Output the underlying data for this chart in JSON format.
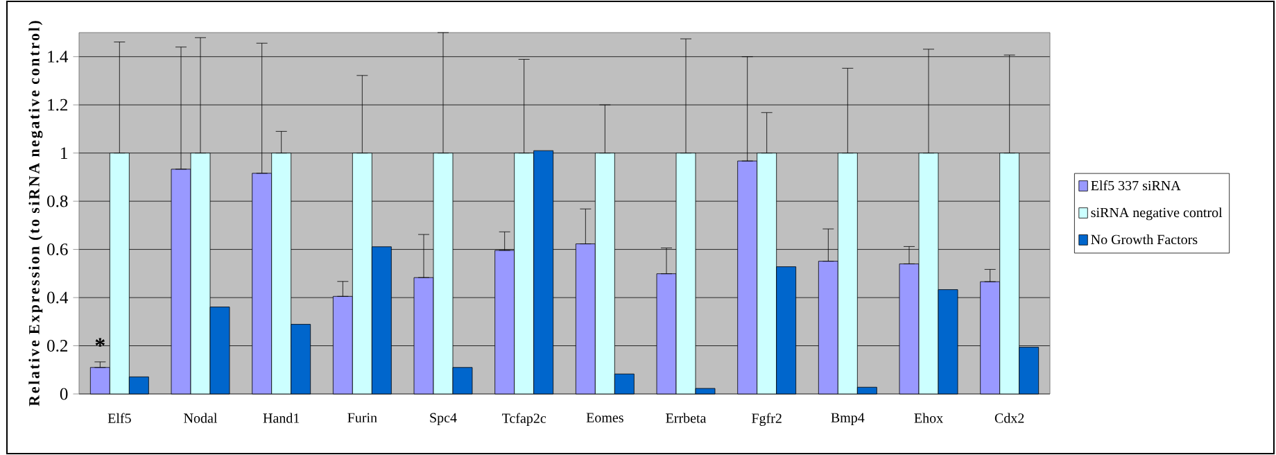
{
  "chart_data": {
    "type": "bar",
    "ylabel": "Relative Expression (to siRNA negative control)",
    "categories": [
      "Elf5",
      "Nodal",
      "Hand1",
      "Furin",
      "Spc4",
      "Tcfap2c",
      "Eomes",
      "Errbeta",
      "Fgfr2",
      "Bmp4",
      "Ehox",
      "Cdx2"
    ],
    "series": [
      {
        "name": "Elf5 337 siRNA",
        "color": "#9999ff",
        "values": [
          0.11,
          0.933,
          0.916,
          0.405,
          0.483,
          0.596,
          0.623,
          0.499,
          0.967,
          0.551,
          0.54,
          0.466
        ],
        "errors": [
          [
            0.11,
            0.133
          ],
          [
            0.933,
            1.44
          ],
          [
            0.916,
            1.456
          ],
          [
            0.405,
            0.467
          ],
          [
            0.483,
            0.662
          ],
          [
            0.596,
            0.673
          ],
          [
            0.623,
            0.768
          ],
          [
            0.499,
            0.606
          ],
          [
            0.967,
            1.4
          ],
          [
            0.551,
            0.685
          ],
          [
            0.54,
            0.612
          ],
          [
            0.466,
            0.517
          ]
        ]
      },
      {
        "name": "siRNA negative control",
        "color": "#ccffff",
        "values": [
          1,
          1,
          1,
          1,
          1,
          1,
          1,
          1,
          1,
          1,
          1,
          1
        ],
        "errors": [
          [
            1,
            1.461
          ],
          [
            1,
            1.479
          ],
          [
            1,
            1.09
          ],
          [
            1,
            1.322
          ],
          [
            1,
            1.5
          ],
          [
            1,
            1.389
          ],
          [
            1,
            1.2
          ],
          [
            1,
            1.474
          ],
          [
            1,
            1.168
          ],
          [
            1,
            1.352
          ],
          [
            1,
            1.431
          ],
          [
            1,
            1.407
          ]
        ]
      },
      {
        "name": "No Growth Factors",
        "color": "#0066cc",
        "values": [
          0.071,
          0.361,
          0.289,
          0.611,
          0.11,
          1.01,
          0.083,
          0.023,
          0.528,
          0.028,
          0.433,
          0.194
        ]
      }
    ],
    "ylim": [
      0,
      1.5
    ],
    "yticks": [
      0,
      0.2,
      0.4,
      0.6,
      0.8,
      1,
      1.2,
      1.4
    ],
    "grid": "y",
    "legend": "right",
    "annotations": [
      "*"
    ]
  }
}
